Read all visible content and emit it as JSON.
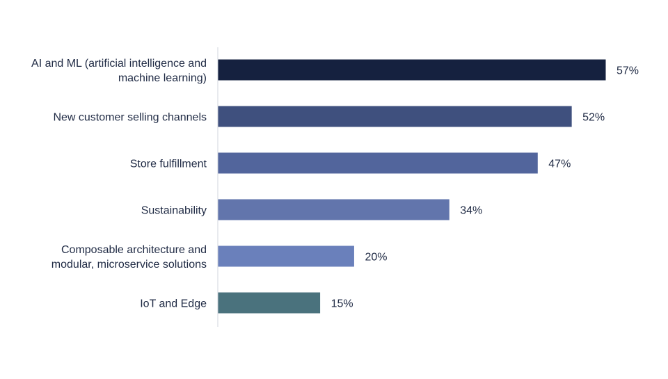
{
  "chart_data": {
    "type": "bar",
    "orientation": "horizontal",
    "title": "",
    "xlabel": "",
    "ylabel": "",
    "categories": [
      [
        "AI and ML (artificial intelligence and",
        "machine learning)"
      ],
      [
        "New customer selling channels"
      ],
      [
        "Store fulfillment"
      ],
      [
        "Sustainability"
      ],
      [
        "Composable architecture and",
        "modular, microservice solutions"
      ],
      [
        "IoT and Edge"
      ]
    ],
    "values": [
      57,
      52,
      47,
      34,
      20,
      15
    ],
    "value_labels": [
      "57%",
      "52%",
      "47%",
      "34%",
      "20%",
      "15%"
    ],
    "bar_colors": [
      "#15213f",
      "#3f507e",
      "#52659c",
      "#6275ac",
      "#6a80bb",
      "#4a727d"
    ],
    "xlim": [
      0,
      60
    ],
    "grid": false,
    "legend": "none",
    "text_color": "#1f2a44",
    "axis_color": "#d0d4dc"
  }
}
